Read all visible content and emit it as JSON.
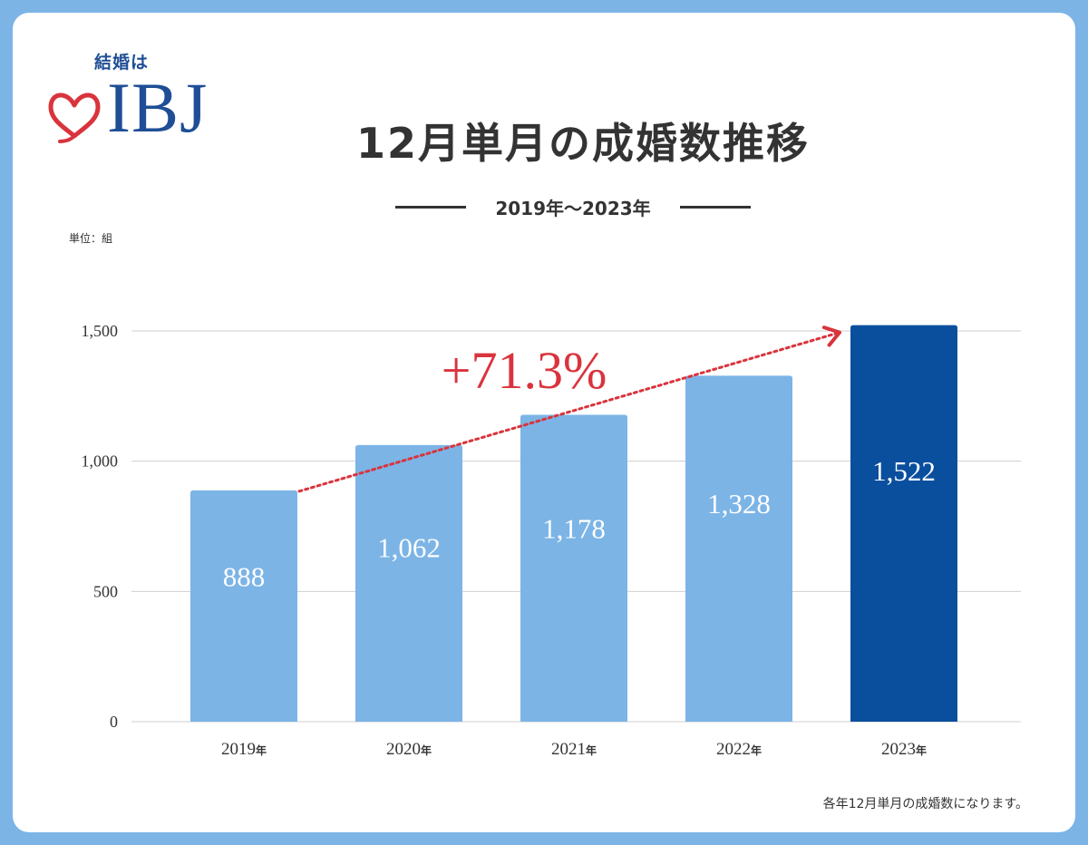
{
  "logo": {
    "kicker": "結婚は",
    "wordmark": "IBJ"
  },
  "header": {
    "title": "12月単月の成婚数推移",
    "subtitle": "2019年〜2023年"
  },
  "unit_label": "単位：組",
  "footnote": "各年12月単月の成婚数になります。",
  "colors": {
    "bar": "#7cb4e6",
    "bar_highlight": "#0a4f9e",
    "accent": "#d9343d",
    "grid": "#cfcfcf",
    "text": "#333333"
  },
  "chart_data": {
    "type": "bar",
    "title": "12月単月の成婚数推移",
    "subtitle": "2019年〜2023年",
    "xlabel": "",
    "ylabel": "単位：組",
    "categories": [
      "2019",
      "2020",
      "2021",
      "2022",
      "2023"
    ],
    "category_suffix": "年",
    "values": [
      888,
      1062,
      1178,
      1328,
      1522
    ],
    "value_labels": [
      "888",
      "1,062",
      "1,178",
      "1,328",
      "1,522"
    ],
    "highlight_index": 4,
    "ylim": [
      0,
      1500
    ],
    "yticks": [
      0,
      500,
      1000,
      1500
    ],
    "ytick_labels": [
      "0",
      "500",
      "1,000",
      "1,500"
    ],
    "grid": true,
    "annotation": {
      "text": "+71.3%",
      "from_index": 0,
      "to_index": 4
    }
  }
}
